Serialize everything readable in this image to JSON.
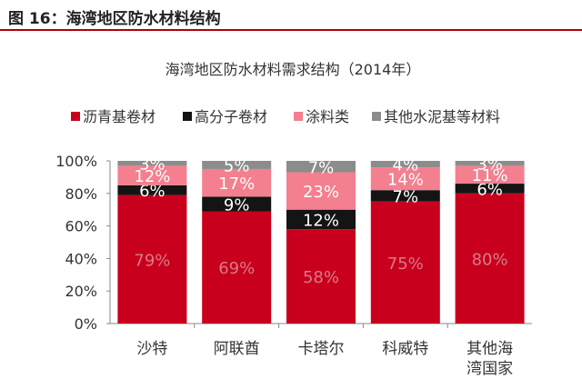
{
  "figure_title": "图 16：海湾地区防水材料结构",
  "chart_data": {
    "type": "bar",
    "stacked": true,
    "percent": true,
    "title": "海湾地区防水材料需求结构（2014年）",
    "categories": [
      "沙特",
      "阿联酋",
      "卡塔尔",
      "科威特",
      "其他海湾国家"
    ],
    "series": [
      {
        "name": "沥青基卷材",
        "color": "#c8001e",
        "labelColor": "#d97a86",
        "values": [
          79,
          69,
          58,
          75,
          80
        ]
      },
      {
        "name": "高分子卷材",
        "color": "#141414",
        "labelColor": "#ffffff",
        "values": [
          6,
          9,
          12,
          7,
          6
        ]
      },
      {
        "name": "涂料类",
        "color": "#f37f8f",
        "labelColor": "#ffffff",
        "values": [
          12,
          17,
          23,
          14,
          11
        ]
      },
      {
        "name": "其他水泥基等材料",
        "color": "#8c8c8c",
        "labelColor": "#ffffff",
        "values": [
          3,
          5,
          7,
          4,
          3
        ]
      }
    ],
    "yticks": [
      "0%",
      "20%",
      "40%",
      "60%",
      "80%",
      "100%"
    ],
    "ylim": [
      0,
      100
    ],
    "legend": "top",
    "grid": false
  }
}
